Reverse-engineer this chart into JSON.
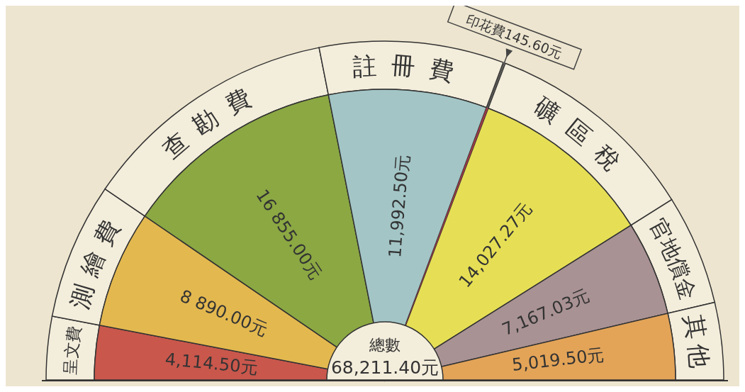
{
  "chart_data": {
    "type": "pie",
    "categories": [
      "呈文費",
      "測繪費",
      "查勘費",
      "註冊費",
      "印花費",
      "礦區稅",
      "官地償金",
      "其他"
    ],
    "values": [
      4114.5,
      8890.0,
      16855.0,
      11992.5,
      145.6,
      14027.27,
      7167.03,
      5019.5
    ],
    "colors": [
      "#c9574c",
      "#e3b84f",
      "#8ba843",
      "#a3c5c6",
      "#9a3a46",
      "#e6df55",
      "#a99294",
      "#e3a458"
    ],
    "value_labels": [
      "4,114.50元",
      "8 890.00元",
      "16 855.00元",
      "11,992.50元",
      "145.60元",
      "14,027.27元",
      "7,167.03元",
      "5,019.50元"
    ],
    "annotations": [
      "總數",
      "68,211.40元"
    ]
  }
}
